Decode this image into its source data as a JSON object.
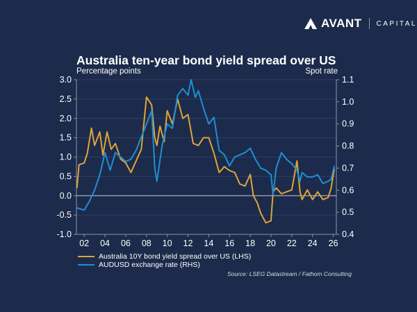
{
  "logo": {
    "brand": "AVANT",
    "sub": "CAPITAL"
  },
  "colors": {
    "background": "#1c2b4b",
    "spread": "#e0a43a",
    "audusd": "#1e8fd5"
  },
  "chart_data": {
    "type": "line",
    "title": "Australia ten-year bond yield spread over US",
    "ylabel_left": "Percentage points",
    "ylabel_right": "Spot rate",
    "ylim_left": [
      -1.0,
      3.0
    ],
    "ylim_right": [
      0.4,
      1.1
    ],
    "yticks_left": [
      "3.0",
      "2.5",
      "2.0",
      "1.5",
      "1.0",
      "0.5",
      "0.0",
      "-0.5",
      "-1.0"
    ],
    "yticks_right": [
      "1.1",
      "1.0",
      "0.9",
      "0.8",
      "0.7",
      "0.6",
      "0.5",
      "0.4"
    ],
    "xticks": [
      "02",
      "04",
      "06",
      "08",
      "10",
      "12",
      "14",
      "16",
      "18",
      "20",
      "22",
      "24",
      "26"
    ],
    "xlim": [
      2001.25,
      2026.3
    ],
    "grid": true,
    "legend_position": "bottom-left",
    "source": "Source: LSEG Datastream / Fathom Consulting",
    "series": [
      {
        "name": "Australia 10Y bond yield spread over US (LHS)",
        "axis": "left",
        "x": [
          2001.3,
          2001.5,
          2002,
          2002.3,
          2002.7,
          2003,
          2003.5,
          2003.8,
          2004.2,
          2004.6,
          2005,
          2005.5,
          2006,
          2006.5,
          2007,
          2007.5,
          2008,
          2008.5,
          2008.8,
          2009,
          2009.3,
          2009.7,
          2010,
          2010.5,
          2011,
          2011.5,
          2012,
          2012.5,
          2013,
          2013.5,
          2014,
          2014.5,
          2015,
          2015.5,
          2016,
          2016.5,
          2017,
          2017.5,
          2018,
          2018.3,
          2018.7,
          2019,
          2019.5,
          2020,
          2020.2,
          2020.5,
          2021,
          2021.5,
          2022,
          2022.5,
          2022.8,
          2023,
          2023.5,
          2024,
          2024.5,
          2025,
          2025.5,
          2025.8,
          2026.1
        ],
        "y": [
          0.2,
          0.8,
          0.85,
          1.1,
          1.75,
          1.3,
          1.65,
          1.05,
          1.65,
          1.2,
          1.35,
          0.95,
          0.85,
          0.6,
          0.9,
          1.2,
          2.55,
          2.35,
          1.5,
          1.3,
          1.8,
          1.4,
          2.2,
          1.85,
          2.5,
          2.0,
          2.1,
          1.35,
          1.3,
          1.5,
          1.5,
          1.1,
          0.6,
          0.75,
          0.65,
          0.6,
          0.3,
          0.25,
          0.55,
          0.0,
          -0.2,
          -0.45,
          -0.7,
          -0.65,
          0.1,
          0.2,
          0.05,
          0.1,
          0.15,
          0.9,
          0.1,
          -0.1,
          0.15,
          -0.1,
          0.1,
          -0.1,
          -0.05,
          0.2,
          0.7
        ]
      },
      {
        "name": "AUDUSD exchange rate (RHS)",
        "axis": "right",
        "x": [
          2001.3,
          2002,
          2002.5,
          2003,
          2003.5,
          2004,
          2004.5,
          2005,
          2005.5,
          2006,
          2006.5,
          2007,
          2007.5,
          2008,
          2008.5,
          2008.8,
          2009,
          2009.5,
          2010,
          2010.5,
          2011,
          2011.5,
          2012,
          2012.3,
          2012.7,
          2013,
          2013.5,
          2014,
          2014.5,
          2015,
          2015.5,
          2016,
          2016.5,
          2017,
          2017.5,
          2018,
          2018.5,
          2019,
          2019.5,
          2020,
          2020.2,
          2020.5,
          2021,
          2021.5,
          2022,
          2022.5,
          2022.8,
          2023,
          2023.5,
          2024,
          2024.5,
          2025,
          2025.5,
          2025.8,
          2026.1
        ],
        "y": [
          0.52,
          0.51,
          0.55,
          0.6,
          0.67,
          0.77,
          0.69,
          0.77,
          0.75,
          0.73,
          0.74,
          0.78,
          0.84,
          0.9,
          0.96,
          0.7,
          0.64,
          0.8,
          0.9,
          0.88,
          1.03,
          1.06,
          1.03,
          1.1,
          1.02,
          1.05,
          0.97,
          0.9,
          0.93,
          0.78,
          0.76,
          0.71,
          0.75,
          0.76,
          0.77,
          0.79,
          0.74,
          0.7,
          0.69,
          0.67,
          0.58,
          0.7,
          0.77,
          0.74,
          0.72,
          0.69,
          0.64,
          0.68,
          0.66,
          0.66,
          0.67,
          0.63,
          0.64,
          0.65,
          0.71
        ]
      }
    ]
  }
}
